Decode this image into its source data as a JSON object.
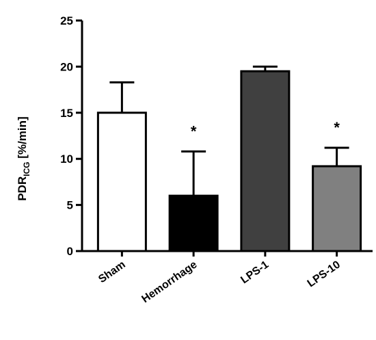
{
  "chart_data": {
    "type": "bar",
    "title": "",
    "xlabel": "",
    "ylabel": {
      "main": "PDR",
      "subscript": "ICG",
      "unit": " [%/min]"
    },
    "ylim": [
      0,
      25
    ],
    "yticks": [
      0,
      5,
      10,
      15,
      20,
      25
    ],
    "grid": false,
    "categories": [
      "Sham",
      "Hemorrhage",
      "LPS-1",
      "LPS-10"
    ],
    "values": [
      15.0,
      6.0,
      19.5,
      9.2
    ],
    "errors": [
      3.3,
      4.8,
      0.5,
      2.0
    ],
    "colors": [
      "#ffffff",
      "#000000",
      "#404040",
      "#808080"
    ],
    "significance": [
      "",
      "*",
      "",
      "*"
    ]
  }
}
